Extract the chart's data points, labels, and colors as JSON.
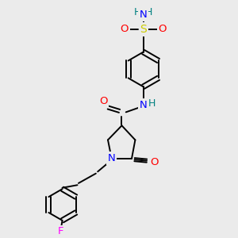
{
  "bg_color": "#ebebeb",
  "atom_colors": {
    "C": "#000000",
    "N": "#0000FF",
    "O": "#FF0000",
    "S": "#CCCC00",
    "F": "#FF00FF",
    "H": "#008080"
  },
  "lw": 1.4,
  "fontsize": 9.5
}
